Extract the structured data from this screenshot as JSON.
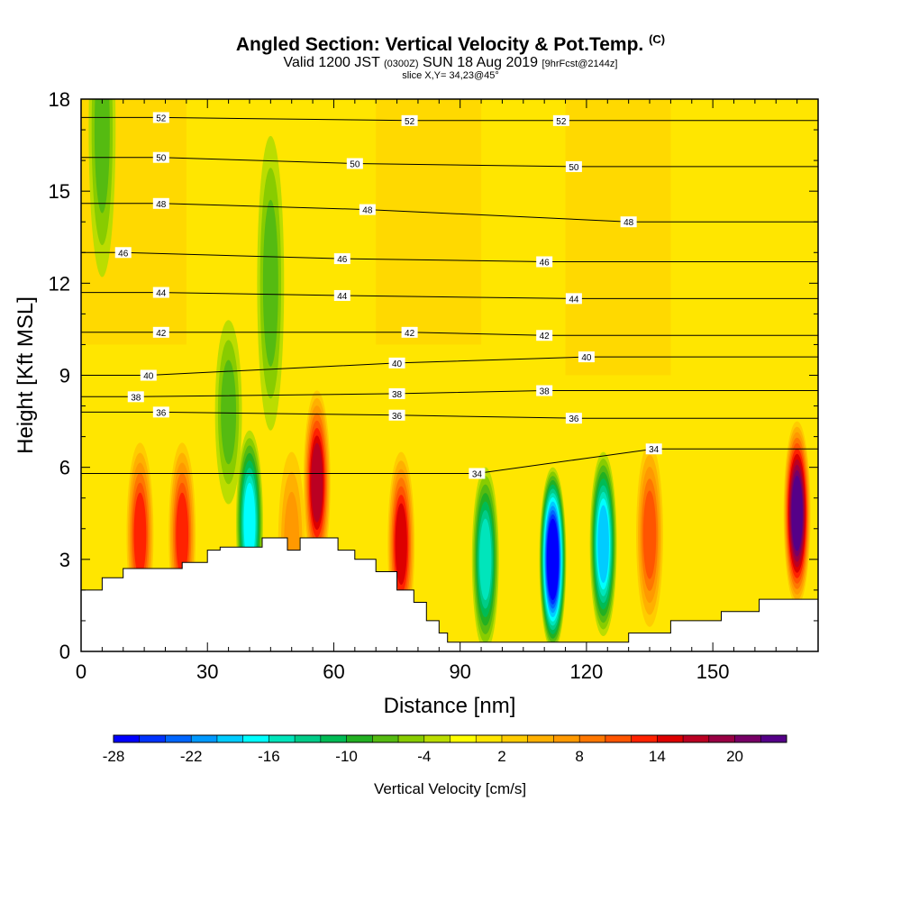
{
  "header": {
    "title_main": "Angled Section: Vertical Velocity & Pot.Temp.",
    "title_unit": "(C)",
    "valid_a": "Valid 1200 JST",
    "valid_b": "(0300Z)",
    "valid_c": "SUN 18 Aug 2019",
    "valid_d": "[9hrFcst@2144z]",
    "slice": "slice X,Y= 34,23@45°"
  },
  "chart_data": {
    "type": "heatmap",
    "title": "Angled Section: Vertical Velocity & Pot.Temp. (C)",
    "xlabel": "Distance [nm]",
    "ylabel": "Height [Kft MSL]",
    "xlim": [
      0,
      175
    ],
    "ylim": [
      0,
      18
    ],
    "x_ticks": [
      0,
      30,
      60,
      90,
      120,
      150
    ],
    "y_ticks": [
      0,
      3,
      6,
      9,
      12,
      15,
      18
    ],
    "grid": false,
    "colorbar": {
      "label": "Vertical Velocity [cm/s]",
      "tick_labels": [
        "-28",
        "-22",
        "-16",
        "-10",
        "-4",
        "2",
        "8",
        "14",
        "20"
      ],
      "tick_values": [
        -28,
        -22,
        -16,
        -10,
        -4,
        2,
        8,
        14,
        20
      ],
      "range": [
        -28,
        24
      ],
      "colors": [
        "#0000ff",
        "#0033ff",
        "#0066ff",
        "#0099ff",
        "#00ccff",
        "#00ffff",
        "#00e5bb",
        "#00cc88",
        "#00bb55",
        "#22b022",
        "#55bb11",
        "#88cc00",
        "#bbdd00",
        "#ffff00",
        "#ffe600",
        "#ffcc00",
        "#ffb000",
        "#ff9900",
        "#ff7700",
        "#ff5500",
        "#ff2200",
        "#dd0000",
        "#bb0022",
        "#990044",
        "#770066",
        "#550088"
      ]
    },
    "terrain": [
      [
        0,
        2.0
      ],
      [
        5,
        2.0
      ],
      [
        5,
        2.4
      ],
      [
        10,
        2.4
      ],
      [
        10,
        2.7
      ],
      [
        24,
        2.7
      ],
      [
        24,
        2.9
      ],
      [
        30,
        2.9
      ],
      [
        30,
        3.3
      ],
      [
        33,
        3.3
      ],
      [
        33,
        3.4
      ],
      [
        43,
        3.4
      ],
      [
        43,
        3.7
      ],
      [
        49,
        3.7
      ],
      [
        49,
        3.3
      ],
      [
        52,
        3.3
      ],
      [
        52,
        3.7
      ],
      [
        61,
        3.7
      ],
      [
        61,
        3.3
      ],
      [
        65,
        3.3
      ],
      [
        65,
        3.0
      ],
      [
        70,
        3.0
      ],
      [
        70,
        2.6
      ],
      [
        75,
        2.6
      ],
      [
        75,
        2.0
      ],
      [
        79,
        2.0
      ],
      [
        79,
        1.6
      ],
      [
        82,
        1.6
      ],
      [
        82,
        1.0
      ],
      [
        85,
        1.0
      ],
      [
        85,
        0.6
      ],
      [
        87,
        0.6
      ],
      [
        87,
        0.3
      ],
      [
        130,
        0.3
      ],
      [
        130,
        0.6
      ],
      [
        140,
        0.6
      ],
      [
        140,
        1.0
      ],
      [
        152,
        1.0
      ],
      [
        152,
        1.3
      ],
      [
        161,
        1.3
      ],
      [
        161,
        1.7
      ],
      [
        175,
        1.7
      ]
    ],
    "theta_contours": [
      {
        "value": 34,
        "labels": [
          [
            94,
            5.8
          ],
          [
            136,
            6.6
          ]
        ]
      },
      {
        "value": 36,
        "labels": [
          [
            19,
            7.8
          ],
          [
            75,
            7.7
          ],
          [
            117,
            7.6
          ]
        ]
      },
      {
        "value": 38,
        "labels": [
          [
            13,
            8.3
          ],
          [
            75,
            8.4
          ],
          [
            110,
            8.5
          ]
        ]
      },
      {
        "value": 40,
        "labels": [
          [
            16,
            9.0
          ],
          [
            75,
            9.4
          ],
          [
            120,
            9.6
          ]
        ]
      },
      {
        "value": 42,
        "labels": [
          [
            19,
            10.4
          ],
          [
            78,
            10.4
          ],
          [
            110,
            10.3
          ]
        ]
      },
      {
        "value": 44,
        "labels": [
          [
            19,
            11.7
          ],
          [
            62,
            11.6
          ],
          [
            117,
            11.5
          ]
        ]
      },
      {
        "value": 46,
        "labels": [
          [
            10,
            13.0
          ],
          [
            62,
            12.8
          ],
          [
            110,
            12.7
          ]
        ]
      },
      {
        "value": 48,
        "labels": [
          [
            19,
            14.6
          ],
          [
            68,
            14.4
          ],
          [
            130,
            14.0
          ]
        ]
      },
      {
        "value": 50,
        "labels": [
          [
            19,
            16.1
          ],
          [
            65,
            15.9
          ],
          [
            117,
            15.8
          ]
        ]
      },
      {
        "value": 52,
        "labels": [
          [
            19,
            17.4
          ],
          [
            78,
            17.3
          ],
          [
            114,
            17.3
          ]
        ]
      }
    ],
    "w_features": [
      {
        "x": 40,
        "y": 4.2,
        "w": -15
      },
      {
        "x": 50,
        "y": 3.5,
        "w": 5
      },
      {
        "x": 56,
        "y": 5.5,
        "w": 16
      },
      {
        "x": 24,
        "y": 3.8,
        "w": 12
      },
      {
        "x": 14,
        "y": 3.8,
        "w": 12
      },
      {
        "x": 76,
        "y": 3.5,
        "w": 14
      },
      {
        "x": 96,
        "y": 3.0,
        "w": -14
      },
      {
        "x": 112,
        "y": 3.0,
        "w": -27
      },
      {
        "x": 124,
        "y": 3.5,
        "w": -18
      },
      {
        "x": 135,
        "y": 3.8,
        "w": 10
      },
      {
        "x": 170,
        "y": 4.5,
        "w": 22
      },
      {
        "x": 45,
        "y": 12.0,
        "w": -6
      },
      {
        "x": 35,
        "y": 7.8,
        "w": -6
      },
      {
        "x": 5,
        "y": 17.0,
        "w": -5
      }
    ]
  }
}
